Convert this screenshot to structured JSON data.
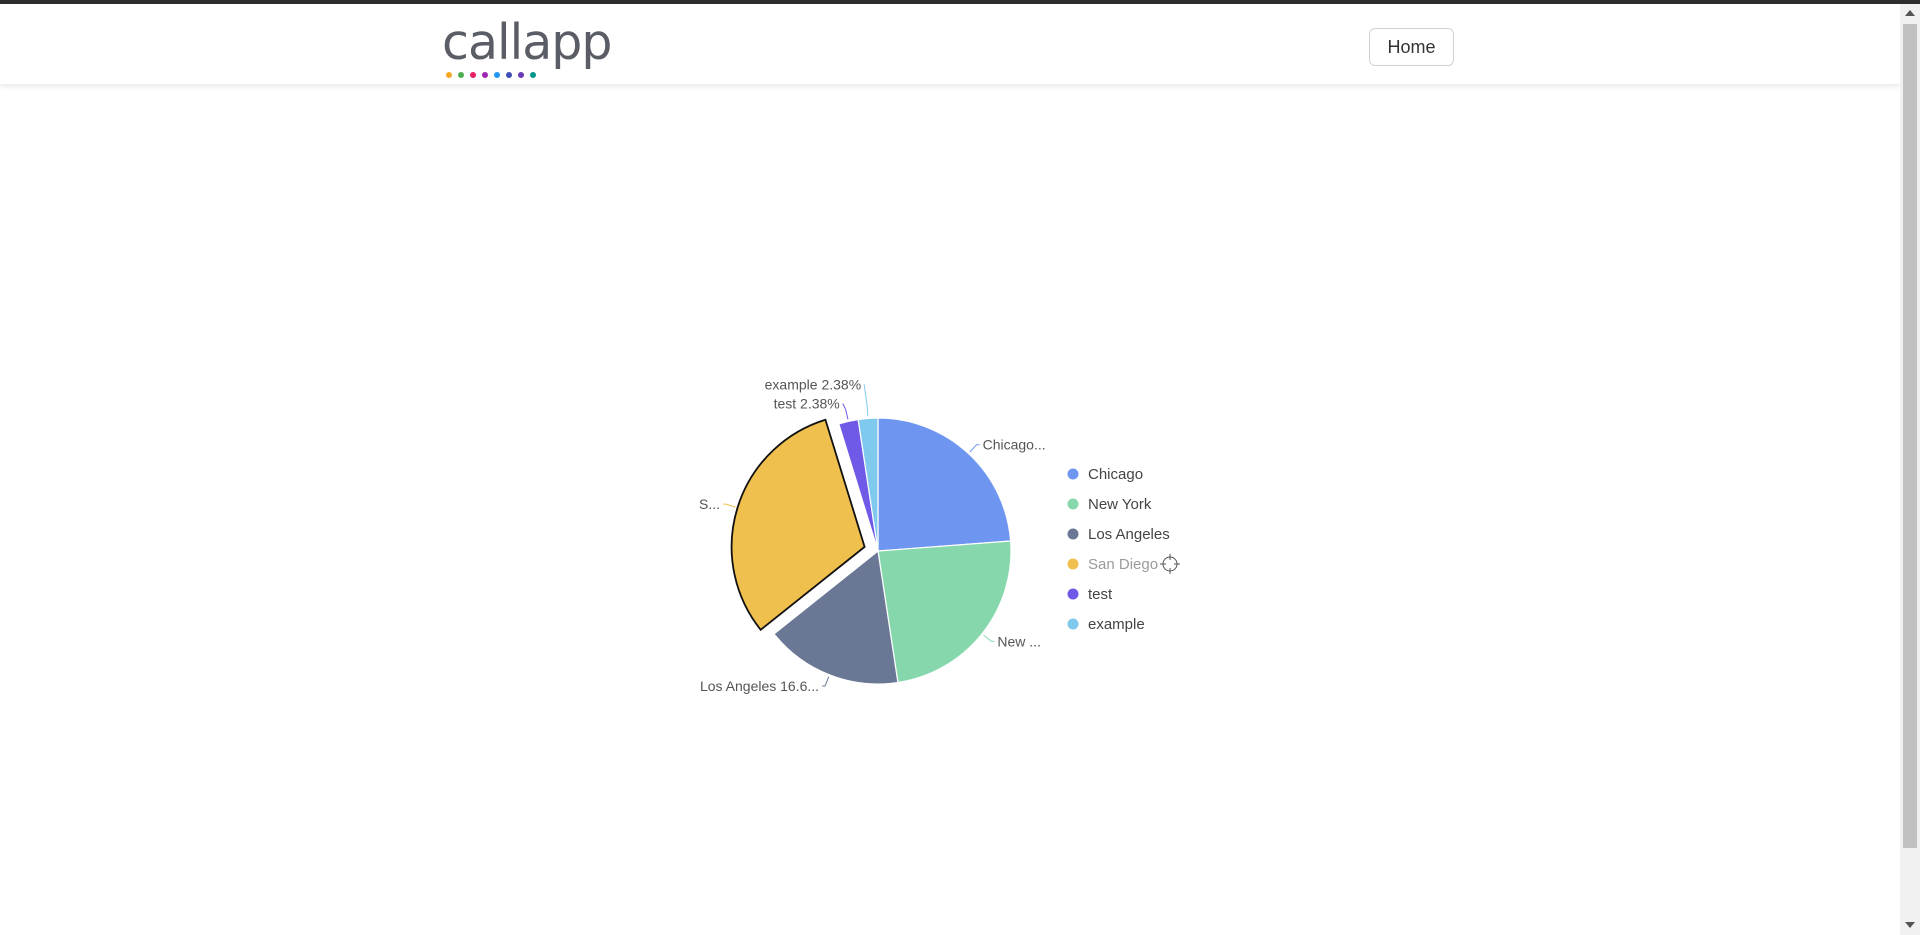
{
  "navbar": {
    "logo_text": "callapp",
    "logo_dot_colors": [
      "#f5a623",
      "#4caf50",
      "#e91e63",
      "#9c27b0",
      "#2196f3",
      "#3f51b5",
      "#673ab7",
      "#009688"
    ],
    "home_label": "Home"
  },
  "chart_data": {
    "type": "pie",
    "categories": [
      "Chicago",
      "New York",
      "Los Angeles",
      "San Diego",
      "test",
      "example"
    ],
    "values": [
      23.8,
      23.8,
      16.67,
      30.95,
      2.38,
      2.38
    ],
    "colors": [
      "#6e96f0",
      "#86d8ac",
      "#6a7795",
      "#efc04e",
      "#6f5ae8",
      "#7fc8ee"
    ],
    "slice_labels": [
      "Chicago...",
      "New ...",
      "Los Angeles 16.6...",
      "S...",
      "test 2.38%",
      "example 2.38%"
    ],
    "highlighted": "San Diego",
    "legend": {
      "position": "right",
      "entries": [
        "Chicago",
        "New York",
        "Los Angeles",
        "San Diego",
        "test",
        "example"
      ],
      "dimmed": "San Diego"
    }
  }
}
